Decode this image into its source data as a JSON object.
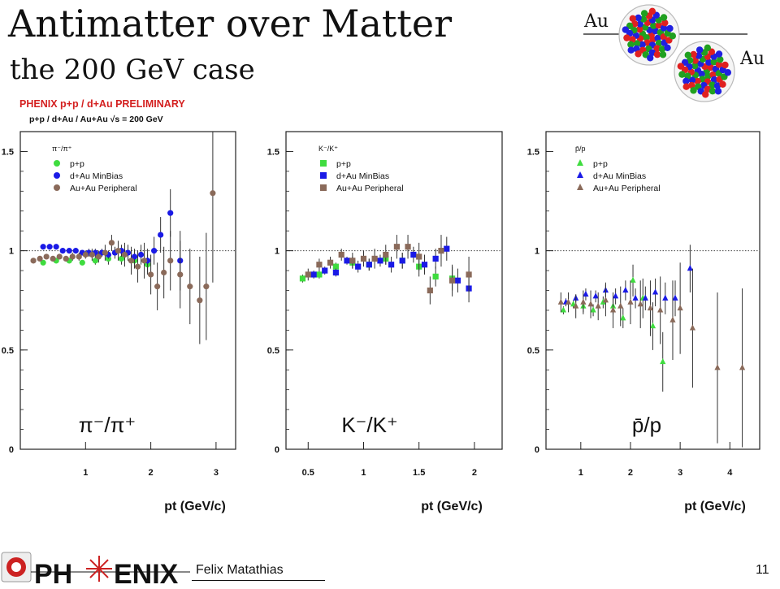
{
  "slide": {
    "title": "Antimatter over Matter",
    "subtitle": "the 200 GeV case",
    "nucleus_label_1": "Au",
    "nucleus_label_2": "Au",
    "annotation_line1": "PHENIX p+p / d+Au PRELIMINARY",
    "annotation_line2": "p+p / d+Au / Au+Au √s = 200 GeV",
    "logo_text_left": "PH",
    "logo_text_right": "ENIX",
    "footer_author": "Felix Matathias",
    "page_number": "11"
  },
  "colors": {
    "pp": "#3fdc3f",
    "dAu": "#1a1ae6",
    "AuAu": "#8a6a5a",
    "logo_red": "#cc2222"
  },
  "chart_data": [
    {
      "type": "scatter",
      "ratio_label": "π⁻/π⁺",
      "legend_title": "π⁻/π⁺",
      "xlabel": "pt (GeV/c)",
      "xlim": [
        0,
        3.3
      ],
      "ylim": [
        0,
        1.6
      ],
      "xticks": [
        1,
        2,
        3
      ],
      "yticks": [
        0,
        0.5,
        1,
        1.5
      ],
      "marker": "circle",
      "reference_line": 1,
      "series": [
        {
          "name": "p+p",
          "color": "#3fdc3f",
          "points": [
            [
              0.35,
              0.94
            ],
            [
              0.55,
              0.95
            ],
            [
              0.75,
              0.95
            ],
            [
              0.95,
              0.94
            ],
            [
              1.15,
              0.95
            ],
            [
              1.35,
              0.96
            ],
            [
              1.55,
              0.96
            ],
            [
              1.75,
              0.95
            ],
            [
              1.95,
              0.93
            ]
          ],
          "err": [
            0.01,
            0.01,
            0.01,
            0.01,
            0.02,
            0.03,
            0.03,
            0.04,
            0.05
          ]
        },
        {
          "name": "d+Au  MinBias",
          "color": "#1a1ae6",
          "points": [
            [
              0.35,
              1.02
            ],
            [
              0.45,
              1.02
            ],
            [
              0.55,
              1.02
            ],
            [
              0.65,
              1.0
            ],
            [
              0.75,
              1.0
            ],
            [
              0.85,
              1.0
            ],
            [
              0.95,
              0.99
            ],
            [
              1.05,
              0.99
            ],
            [
              1.15,
              0.99
            ],
            [
              1.25,
              0.99
            ],
            [
              1.35,
              0.98
            ],
            [
              1.45,
              0.99
            ],
            [
              1.55,
              1.0
            ],
            [
              1.65,
              0.99
            ],
            [
              1.75,
              0.97
            ],
            [
              1.85,
              0.98
            ],
            [
              1.95,
              0.95
            ],
            [
              2.05,
              1.0
            ],
            [
              2.15,
              1.08
            ],
            [
              2.3,
              1.19
            ],
            [
              2.45,
              0.95
            ]
          ],
          "err": [
            0.01,
            0.01,
            0.01,
            0.01,
            0.01,
            0.01,
            0.01,
            0.02,
            0.02,
            0.02,
            0.02,
            0.03,
            0.03,
            0.04,
            0.04,
            0.05,
            0.06,
            0.07,
            0.09,
            0.12,
            0.15
          ]
        },
        {
          "name": "Au+Au Peripheral",
          "color": "#8a6a5a",
          "points": [
            [
              0.2,
              0.95
            ],
            [
              0.3,
              0.96
            ],
            [
              0.4,
              0.97
            ],
            [
              0.5,
              0.96
            ],
            [
              0.6,
              0.97
            ],
            [
              0.7,
              0.96
            ],
            [
              0.8,
              0.97
            ],
            [
              0.9,
              0.97
            ],
            [
              1.0,
              0.98
            ],
            [
              1.1,
              0.98
            ],
            [
              1.2,
              0.97
            ],
            [
              1.3,
              0.99
            ],
            [
              1.4,
              1.04
            ],
            [
              1.5,
              1.0
            ],
            [
              1.6,
              0.98
            ],
            [
              1.7,
              0.95
            ],
            [
              1.8,
              0.92
            ],
            [
              1.9,
              0.95
            ],
            [
              2.0,
              0.88
            ],
            [
              2.1,
              0.82
            ],
            [
              2.2,
              0.89
            ],
            [
              2.3,
              0.95
            ],
            [
              2.45,
              0.88
            ],
            [
              2.6,
              0.82
            ],
            [
              2.75,
              0.75
            ],
            [
              2.85,
              0.82
            ],
            [
              2.95,
              1.29
            ]
          ],
          "err": [
            0.01,
            0.01,
            0.01,
            0.01,
            0.01,
            0.01,
            0.02,
            0.02,
            0.02,
            0.03,
            0.03,
            0.04,
            0.04,
            0.05,
            0.06,
            0.07,
            0.08,
            0.09,
            0.1,
            0.12,
            0.13,
            0.15,
            0.17,
            0.19,
            0.22,
            0.27,
            0.45
          ]
        }
      ]
    },
    {
      "type": "scatter",
      "ratio_label": "K⁻/K⁺",
      "legend_title": "K⁻/K⁺",
      "xlabel": "pt (GeV/c)",
      "xlim": [
        0.3,
        2.25
      ],
      "ylim": [
        0,
        1.6
      ],
      "xticks": [
        0.5,
        1,
        1.5,
        2
      ],
      "xtick_labels": [
        "0.5",
        "1",
        "1.5",
        "2"
      ],
      "yticks": [
        0,
        0.5,
        1,
        1.5
      ],
      "marker": "square",
      "reference_line": 1,
      "series": [
        {
          "name": "p+p",
          "color": "#3fdc3f",
          "points": [
            [
              0.45,
              0.86
            ],
            [
              0.6,
              0.88
            ],
            [
              0.75,
              0.92
            ],
            [
              0.9,
              0.94
            ],
            [
              1.05,
              0.93
            ],
            [
              1.2,
              0.96
            ],
            [
              1.35,
              0.95
            ],
            [
              1.5,
              0.92
            ],
            [
              1.65,
              0.87
            ],
            [
              1.8,
              0.86
            ]
          ],
          "err": [
            0.02,
            0.02,
            0.02,
            0.03,
            0.03,
            0.03,
            0.04,
            0.05,
            0.05,
            0.06
          ]
        },
        {
          "name": "d+Au  MinBias",
          "color": "#1a1ae6",
          "points": [
            [
              0.55,
              0.88
            ],
            [
              0.65,
              0.9
            ],
            [
              0.75,
              0.89
            ],
            [
              0.85,
              0.95
            ],
            [
              0.95,
              0.92
            ],
            [
              1.05,
              0.93
            ],
            [
              1.15,
              0.95
            ],
            [
              1.25,
              0.93
            ],
            [
              1.35,
              0.95
            ],
            [
              1.45,
              0.98
            ],
            [
              1.55,
              0.93
            ],
            [
              1.65,
              0.96
            ],
            [
              1.75,
              1.01
            ],
            [
              1.85,
              0.85
            ],
            [
              1.95,
              0.81
            ]
          ],
          "err": [
            0.02,
            0.02,
            0.02,
            0.02,
            0.03,
            0.03,
            0.03,
            0.04,
            0.04,
            0.04,
            0.05,
            0.05,
            0.06,
            0.06,
            0.07
          ]
        },
        {
          "name": "Au+Au Peripheral",
          "color": "#8a6a5a",
          "points": [
            [
              0.5,
              0.88
            ],
            [
              0.6,
              0.93
            ],
            [
              0.7,
              0.94
            ],
            [
              0.8,
              0.98
            ],
            [
              0.9,
              0.95
            ],
            [
              1.0,
              0.96
            ],
            [
              1.1,
              0.96
            ],
            [
              1.2,
              0.98
            ],
            [
              1.3,
              1.02
            ],
            [
              1.4,
              1.02
            ],
            [
              1.5,
              0.97
            ],
            [
              1.6,
              0.8
            ],
            [
              1.7,
              1.0
            ],
            [
              1.8,
              0.85
            ],
            [
              1.95,
              0.88
            ]
          ],
          "err": [
            0.03,
            0.03,
            0.03,
            0.03,
            0.04,
            0.04,
            0.05,
            0.05,
            0.06,
            0.06,
            0.07,
            0.07,
            0.08,
            0.08,
            0.09
          ]
        }
      ]
    },
    {
      "type": "scatter",
      "ratio_label": "p̄/p",
      "legend_title": "p̄/p",
      "xlabel": "pt (GeV/c)",
      "xlim": [
        0.3,
        4.6
      ],
      "ylim": [
        0,
        1.6
      ],
      "xticks": [
        1,
        2,
        3,
        4
      ],
      "yticks": [
        0,
        0.5,
        1,
        1.5
      ],
      "marker": "triangle",
      "reference_line": 1,
      "series": [
        {
          "name": "p+p",
          "color": "#3fdc3f",
          "points": [
            [
              0.65,
              0.7
            ],
            [
              0.85,
              0.73
            ],
            [
              1.05,
              0.72
            ],
            [
              1.25,
              0.7
            ],
            [
              1.45,
              0.74
            ],
            [
              1.65,
              0.72
            ],
            [
              1.85,
              0.66
            ],
            [
              2.05,
              0.85
            ],
            [
              2.25,
              0.76
            ],
            [
              2.45,
              0.62
            ],
            [
              2.65,
              0.44
            ]
          ],
          "err": [
            0.02,
            0.02,
            0.03,
            0.03,
            0.03,
            0.04,
            0.05,
            0.08,
            0.1,
            0.12,
            0.15
          ]
        },
        {
          "name": "d+Au  MinBias",
          "color": "#1a1ae6",
          "points": [
            [
              0.7,
              0.74
            ],
            [
              0.9,
              0.76
            ],
            [
              1.1,
              0.78
            ],
            [
              1.3,
              0.77
            ],
            [
              1.5,
              0.8
            ],
            [
              1.7,
              0.77
            ],
            [
              1.9,
              0.8
            ],
            [
              2.1,
              0.76
            ],
            [
              2.3,
              0.76
            ],
            [
              2.5,
              0.79
            ],
            [
              2.7,
              0.76
            ],
            [
              2.9,
              0.76
            ],
            [
              3.2,
              0.91
            ]
          ],
          "err": [
            0.02,
            0.02,
            0.03,
            0.03,
            0.04,
            0.04,
            0.05,
            0.05,
            0.06,
            0.07,
            0.08,
            0.09,
            0.12
          ]
        },
        {
          "name": "Au+Au Peripheral",
          "color": "#8a6a5a",
          "points": [
            [
              0.6,
              0.74
            ],
            [
              0.75,
              0.74
            ],
            [
              0.9,
              0.72
            ],
            [
              1.05,
              0.74
            ],
            [
              1.2,
              0.73
            ],
            [
              1.35,
              0.72
            ],
            [
              1.5,
              0.75
            ],
            [
              1.65,
              0.7
            ],
            [
              1.8,
              0.72
            ],
            [
              2.0,
              0.74
            ],
            [
              2.2,
              0.73
            ],
            [
              2.4,
              0.71
            ],
            [
              2.6,
              0.7
            ],
            [
              2.85,
              0.65
            ],
            [
              3.0,
              0.71
            ],
            [
              3.25,
              0.61
            ],
            [
              3.75,
              0.41
            ],
            [
              4.25,
              0.41
            ]
          ],
          "err": [
            0.05,
            0.05,
            0.06,
            0.06,
            0.07,
            0.07,
            0.08,
            0.09,
            0.1,
            0.11,
            0.12,
            0.14,
            0.17,
            0.2,
            0.23,
            0.3,
            0.38,
            0.4
          ]
        }
      ]
    }
  ]
}
